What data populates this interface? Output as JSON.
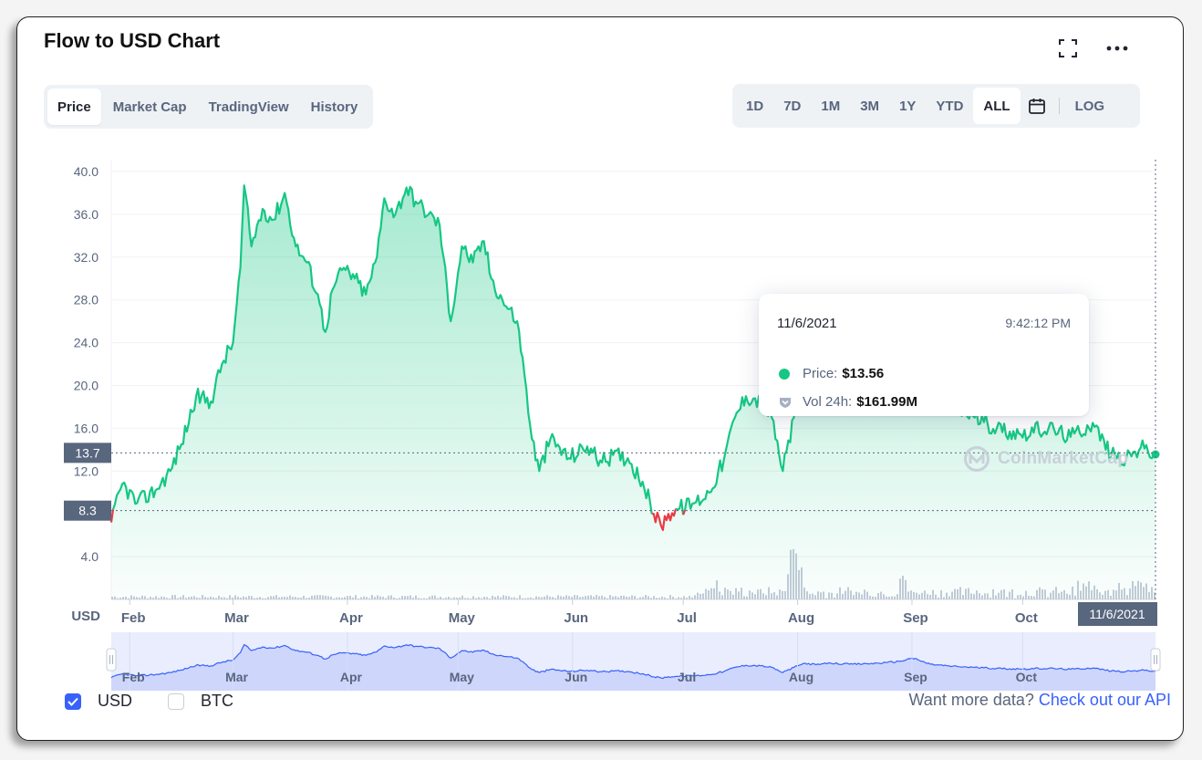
{
  "header": {
    "title": "Flow to USD Chart",
    "expand_icon": "expand-icon",
    "more_icon": "more-dots-icon"
  },
  "tabs": [
    {
      "label": "Price",
      "active": true
    },
    {
      "label": "Market Cap",
      "active": false
    },
    {
      "label": "TradingView",
      "active": false
    },
    {
      "label": "History",
      "active": false
    }
  ],
  "ranges": [
    {
      "label": "1D",
      "active": false
    },
    {
      "label": "7D",
      "active": false
    },
    {
      "label": "1M",
      "active": false
    },
    {
      "label": "3M",
      "active": false
    },
    {
      "label": "1Y",
      "active": false
    },
    {
      "label": "YTD",
      "active": false
    },
    {
      "label": "ALL",
      "active": true
    }
  ],
  "calendar_icon": "calendar-icon",
  "log_label": "LOG",
  "tooltip": {
    "date": "11/6/2021",
    "time": "9:42:12 PM",
    "price_label": "Price:",
    "price_value": "$13.56",
    "vol_label": "Vol 24h:",
    "vol_value": "$161.99M"
  },
  "watermark": "CoinMarketCap",
  "legend": [
    {
      "label": "USD",
      "checked": true
    },
    {
      "label": "BTC",
      "checked": false
    }
  ],
  "api": {
    "prefix": "Want more data?",
    "link": "Check out our API"
  },
  "colors": {
    "up": "#16c784",
    "down": "#ea3943",
    "navigator": "#3861fb",
    "volume": "#c3cbd8"
  },
  "chart_data": {
    "type": "area",
    "yunit_label": "USD",
    "ylim": [
      0,
      40
    ],
    "yticks": [
      4.0,
      12.0,
      16.0,
      20.0,
      24.0,
      28.0,
      32.0,
      36.0,
      40.0
    ],
    "xticks": [
      "Feb",
      "Mar",
      "Apr",
      "May",
      "Jun",
      "Jul",
      "Aug",
      "Sep",
      "Oct"
    ],
    "xrange": [
      "2021-01-27",
      "2021-11-06"
    ],
    "reference_lines": [
      {
        "label": "13.7",
        "value": 13.7
      },
      {
        "label": "8.3",
        "value": 8.3
      }
    ],
    "crosshair_label": "11/6/2021",
    "series": [
      {
        "points": [
          [
            "2021-01-27",
            7.2
          ],
          [
            "2021-01-30",
            10.8
          ],
          [
            "2021-02-03",
            9.0
          ],
          [
            "2021-02-08",
            10.2
          ],
          [
            "2021-02-12",
            12.0
          ],
          [
            "2021-02-15",
            14.5
          ],
          [
            "2021-02-19",
            19.0
          ],
          [
            "2021-02-23",
            18.5
          ],
          [
            "2021-02-26",
            22.0
          ],
          [
            "2021-03-01",
            24.0
          ],
          [
            "2021-03-03",
            31.0
          ],
          [
            "2021-03-04",
            38.7
          ],
          [
            "2021-03-06",
            33.0
          ],
          [
            "2021-03-09",
            36.5
          ],
          [
            "2021-03-12",
            35.5
          ],
          [
            "2021-03-15",
            38.0
          ],
          [
            "2021-03-18",
            33.0
          ],
          [
            "2021-03-21",
            31.5
          ],
          [
            "2021-03-24",
            28.5
          ],
          [
            "2021-03-26",
            25.0
          ],
          [
            "2021-03-28",
            29.0
          ],
          [
            "2021-03-31",
            31.0
          ],
          [
            "2021-04-03",
            30.0
          ],
          [
            "2021-04-06",
            28.5
          ],
          [
            "2021-04-09",
            32.0
          ],
          [
            "2021-04-11",
            37.5
          ],
          [
            "2021-04-14",
            36.0
          ],
          [
            "2021-04-17",
            38.5
          ],
          [
            "2021-04-20",
            37.0
          ],
          [
            "2021-04-23",
            36.0
          ],
          [
            "2021-04-26",
            35.0
          ],
          [
            "2021-04-29",
            26.0
          ],
          [
            "2021-05-02",
            33.0
          ],
          [
            "2021-05-05",
            31.5
          ],
          [
            "2021-05-08",
            33.5
          ],
          [
            "2021-05-10",
            30.0
          ],
          [
            "2021-05-13",
            28.0
          ],
          [
            "2021-05-17",
            26.0
          ],
          [
            "2021-05-19",
            21.0
          ],
          [
            "2021-05-21",
            15.0
          ],
          [
            "2021-05-23",
            12.0
          ],
          [
            "2021-05-26",
            15.0
          ],
          [
            "2021-05-31",
            13.2
          ],
          [
            "2021-06-05",
            14.3
          ],
          [
            "2021-06-09",
            12.8
          ],
          [
            "2021-06-12",
            13.5
          ],
          [
            "2021-06-16",
            13.2
          ],
          [
            "2021-06-20",
            11.0
          ],
          [
            "2021-06-23",
            8.0
          ],
          [
            "2021-06-25",
            6.9
          ],
          [
            "2021-06-27",
            8.0
          ],
          [
            "2021-06-30",
            8.5
          ],
          [
            "2021-07-04",
            9.0
          ],
          [
            "2021-07-08",
            10.0
          ],
          [
            "2021-07-12",
            13.0
          ],
          [
            "2021-07-15",
            17.0
          ],
          [
            "2021-07-18",
            19.0
          ],
          [
            "2021-07-22",
            18.5
          ],
          [
            "2021-07-25",
            17.0
          ],
          [
            "2021-07-28",
            12.0
          ],
          [
            "2021-07-31",
            17.0
          ],
          [
            "2021-08-03",
            21.0
          ],
          [
            "2021-08-06",
            19.5
          ],
          [
            "2021-08-10",
            21.0
          ],
          [
            "2021-08-15",
            20.0
          ],
          [
            "2021-08-20",
            20.5
          ],
          [
            "2021-08-25",
            21.5
          ],
          [
            "2021-08-29",
            23.0
          ],
          [
            "2021-09-01",
            26.0
          ],
          [
            "2021-09-06",
            20.0
          ],
          [
            "2021-09-12",
            18.0
          ],
          [
            "2021-09-18",
            17.0
          ],
          [
            "2021-09-24",
            16.0
          ],
          [
            "2021-09-30",
            15.5
          ],
          [
            "2021-10-08",
            16.0
          ],
          [
            "2021-10-14",
            15.2
          ],
          [
            "2021-10-20",
            16.5
          ],
          [
            "2021-10-25",
            13.5
          ],
          [
            "2021-10-29",
            13.0
          ],
          [
            "2021-11-02",
            14.2
          ],
          [
            "2021-11-06",
            13.56
          ]
        ]
      }
    ],
    "volume_note": "relative bars, no axis"
  }
}
